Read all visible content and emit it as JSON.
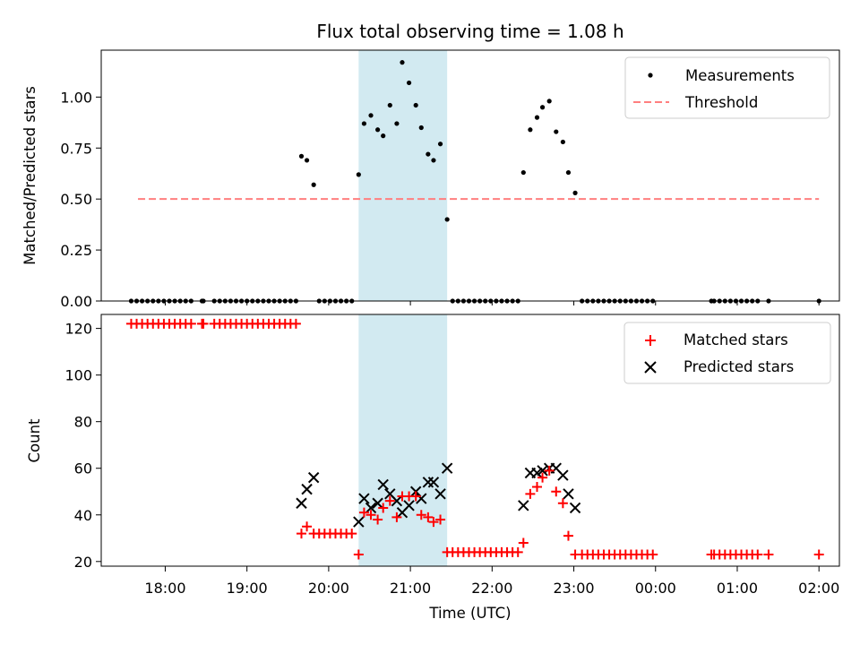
{
  "chart_data": [
    {
      "type": "scatter",
      "title": "Flux total observing time = 1.08 h",
      "xlabel": "",
      "ylabel": "Matched/Predicted stars",
      "ylim": [
        0,
        1.23
      ],
      "yticks": [
        0,
        0.25,
        0.5,
        0.75,
        1.0
      ],
      "ytick_labels": [
        "0.00",
        "0.25",
        "0.50",
        "0.75",
        "1.00"
      ],
      "grid": false,
      "legend_position": "top-right",
      "shaded_span": {
        "start": "20:22",
        "end": "21:27",
        "color": "#add8e6"
      },
      "threshold": {
        "value": 0.5,
        "start": "17:40",
        "end": "02:00"
      },
      "series": [
        {
          "name": "Measurements",
          "marker": "dot",
          "color": "#000000",
          "points": [
            [
              "17:35",
              0
            ],
            [
              "17:39",
              0
            ],
            [
              "17:43",
              0
            ],
            [
              "17:47",
              0
            ],
            [
              "17:51",
              0
            ],
            [
              "17:55",
              0
            ],
            [
              "17:59",
              0
            ],
            [
              "18:03",
              0
            ],
            [
              "18:07",
              0
            ],
            [
              "18:11",
              0
            ],
            [
              "18:15",
              0
            ],
            [
              "18:19",
              0
            ],
            [
              "18:27",
              0
            ],
            [
              "18:28",
              0
            ],
            [
              "18:36",
              0
            ],
            [
              "18:40",
              0
            ],
            [
              "18:44",
              0
            ],
            [
              "18:48",
              0
            ],
            [
              "18:52",
              0
            ],
            [
              "18:56",
              0
            ],
            [
              "19:00",
              0
            ],
            [
              "19:04",
              0
            ],
            [
              "19:08",
              0
            ],
            [
              "19:12",
              0
            ],
            [
              "19:16",
              0
            ],
            [
              "19:20",
              0
            ],
            [
              "19:24",
              0
            ],
            [
              "19:28",
              0
            ],
            [
              "19:32",
              0
            ],
            [
              "19:36",
              0
            ],
            [
              "19:40",
              0.71
            ],
            [
              "19:44",
              0.69
            ],
            [
              "19:49",
              0.57
            ],
            [
              "19:53",
              0
            ],
            [
              "19:57",
              0
            ],
            [
              "20:01",
              0
            ],
            [
              "20:05",
              0
            ],
            [
              "20:09",
              0
            ],
            [
              "20:13",
              0
            ],
            [
              "20:17",
              0
            ],
            [
              "20:22",
              0.62
            ],
            [
              "20:26",
              0.87
            ],
            [
              "20:31",
              0.91
            ],
            [
              "20:36",
              0.84
            ],
            [
              "20:40",
              0.81
            ],
            [
              "20:45",
              0.96
            ],
            [
              "20:50",
              0.87
            ],
            [
              "20:54",
              1.17
            ],
            [
              "20:59",
              1.07
            ],
            [
              "21:04",
              0.96
            ],
            [
              "21:08",
              0.85
            ],
            [
              "21:13",
              0.72
            ],
            [
              "21:17",
              0.69
            ],
            [
              "21:22",
              0.77
            ],
            [
              "21:27",
              0.4
            ],
            [
              "21:31",
              0
            ],
            [
              "21:35",
              0
            ],
            [
              "21:39",
              0
            ],
            [
              "21:43",
              0
            ],
            [
              "21:47",
              0
            ],
            [
              "21:51",
              0
            ],
            [
              "21:55",
              0
            ],
            [
              "21:59",
              0
            ],
            [
              "22:03",
              0
            ],
            [
              "22:07",
              0
            ],
            [
              "22:11",
              0
            ],
            [
              "22:15",
              0
            ],
            [
              "22:19",
              0
            ],
            [
              "22:23",
              0.63
            ],
            [
              "22:28",
              0.84
            ],
            [
              "22:33",
              0.9
            ],
            [
              "22:37",
              0.95
            ],
            [
              "22:42",
              0.98
            ],
            [
              "22:47",
              0.83
            ],
            [
              "22:52",
              0.78
            ],
            [
              "22:56",
              0.63
            ],
            [
              "23:01",
              0.53
            ],
            [
              "23:06",
              0
            ],
            [
              "23:10",
              0
            ],
            [
              "23:14",
              0
            ],
            [
              "23:18",
              0
            ],
            [
              "23:22",
              0
            ],
            [
              "23:26",
              0
            ],
            [
              "23:30",
              0
            ],
            [
              "23:34",
              0
            ],
            [
              "23:38",
              0
            ],
            [
              "23:42",
              0
            ],
            [
              "23:46",
              0
            ],
            [
              "23:50",
              0
            ],
            [
              "23:54",
              0
            ],
            [
              "23:58",
              0
            ],
            [
              "00:41",
              0
            ],
            [
              "00:43",
              0
            ],
            [
              "00:47",
              0
            ],
            [
              "00:51",
              0
            ],
            [
              "00:55",
              0
            ],
            [
              "00:59",
              0
            ],
            [
              "01:03",
              0
            ],
            [
              "01:07",
              0
            ],
            [
              "01:11",
              0
            ],
            [
              "01:15",
              0
            ],
            [
              "01:23",
              0
            ],
            [
              "02:00",
              0
            ]
          ]
        },
        {
          "name": "Threshold",
          "type": "line",
          "style": "dashed",
          "color": "#ff7f7f",
          "points": [
            [
              "17:40",
              0.5
            ],
            [
              "02:00",
              0.5
            ]
          ]
        }
      ]
    },
    {
      "type": "scatter",
      "title": "",
      "xlabel": "Time (UTC)",
      "ylabel": "Count",
      "ylim": [
        18,
        126
      ],
      "yticks": [
        20,
        40,
        60,
        80,
        100,
        120
      ],
      "ytick_labels": [
        "20",
        "40",
        "60",
        "80",
        "100",
        "120"
      ],
      "xticks": [
        "18:00",
        "19:00",
        "20:00",
        "21:00",
        "22:00",
        "23:00",
        "00:00",
        "01:00",
        "02:00"
      ],
      "grid": false,
      "legend_position": "top-right",
      "shaded_span": {
        "start": "20:22",
        "end": "21:27",
        "color": "#add8e6"
      },
      "series": [
        {
          "name": "Matched stars",
          "marker": "plus",
          "color": "#ff0000",
          "points": [
            [
              "17:35",
              122
            ],
            [
              "17:39",
              122
            ],
            [
              "17:43",
              122
            ],
            [
              "17:47",
              122
            ],
            [
              "17:51",
              122
            ],
            [
              "17:55",
              122
            ],
            [
              "17:59",
              122
            ],
            [
              "18:03",
              122
            ],
            [
              "18:07",
              122
            ],
            [
              "18:11",
              122
            ],
            [
              "18:15",
              122
            ],
            [
              "18:19",
              122
            ],
            [
              "18:27",
              122
            ],
            [
              "18:28",
              122
            ],
            [
              "18:36",
              122
            ],
            [
              "18:40",
              122
            ],
            [
              "18:44",
              122
            ],
            [
              "18:48",
              122
            ],
            [
              "18:52",
              122
            ],
            [
              "18:56",
              122
            ],
            [
              "19:00",
              122
            ],
            [
              "19:04",
              122
            ],
            [
              "19:08",
              122
            ],
            [
              "19:12",
              122
            ],
            [
              "19:16",
              122
            ],
            [
              "19:20",
              122
            ],
            [
              "19:24",
              122
            ],
            [
              "19:28",
              122
            ],
            [
              "19:32",
              122
            ],
            [
              "19:36",
              122
            ],
            [
              "19:40",
              32
            ],
            [
              "19:44",
              35
            ],
            [
              "19:49",
              32
            ],
            [
              "19:53",
              32
            ],
            [
              "19:57",
              32
            ],
            [
              "20:01",
              32
            ],
            [
              "20:05",
              32
            ],
            [
              "20:09",
              32
            ],
            [
              "20:13",
              32
            ],
            [
              "20:17",
              32
            ],
            [
              "20:22",
              23
            ],
            [
              "20:26",
              41
            ],
            [
              "20:31",
              40
            ],
            [
              "20:36",
              38
            ],
            [
              "20:40",
              43
            ],
            [
              "20:45",
              46
            ],
            [
              "20:50",
              39
            ],
            [
              "20:54",
              48
            ],
            [
              "20:59",
              48
            ],
            [
              "21:04",
              48
            ],
            [
              "21:08",
              40
            ],
            [
              "21:13",
              39
            ],
            [
              "21:17",
              37
            ],
            [
              "21:22",
              38
            ],
            [
              "21:27",
              24
            ],
            [
              "21:31",
              24
            ],
            [
              "21:35",
              24
            ],
            [
              "21:39",
              24
            ],
            [
              "21:43",
              24
            ],
            [
              "21:47",
              24
            ],
            [
              "21:51",
              24
            ],
            [
              "21:55",
              24
            ],
            [
              "21:59",
              24
            ],
            [
              "22:03",
              24
            ],
            [
              "22:07",
              24
            ],
            [
              "22:11",
              24
            ],
            [
              "22:15",
              24
            ],
            [
              "22:19",
              24
            ],
            [
              "22:23",
              28
            ],
            [
              "22:28",
              49
            ],
            [
              "22:33",
              52
            ],
            [
              "22:37",
              56
            ],
            [
              "22:42",
              59
            ],
            [
              "22:47",
              50
            ],
            [
              "22:52",
              45
            ],
            [
              "22:56",
              31
            ],
            [
              "23:01",
              23
            ],
            [
              "23:06",
              23
            ],
            [
              "23:10",
              23
            ],
            [
              "23:14",
              23
            ],
            [
              "23:18",
              23
            ],
            [
              "23:22",
              23
            ],
            [
              "23:26",
              23
            ],
            [
              "23:30",
              23
            ],
            [
              "23:34",
              23
            ],
            [
              "23:38",
              23
            ],
            [
              "23:42",
              23
            ],
            [
              "23:46",
              23
            ],
            [
              "23:50",
              23
            ],
            [
              "23:54",
              23
            ],
            [
              "23:58",
              23
            ],
            [
              "00:41",
              23
            ],
            [
              "00:43",
              23
            ],
            [
              "00:47",
              23
            ],
            [
              "00:51",
              23
            ],
            [
              "00:55",
              23
            ],
            [
              "00:59",
              23
            ],
            [
              "01:03",
              23
            ],
            [
              "01:07",
              23
            ],
            [
              "01:11",
              23
            ],
            [
              "01:15",
              23
            ],
            [
              "01:23",
              23
            ],
            [
              "02:00",
              23
            ]
          ]
        },
        {
          "name": "Predicted stars",
          "marker": "x",
          "color": "#000000",
          "points": [
            [
              "19:40",
              45
            ],
            [
              "19:44",
              51
            ],
            [
              "19:49",
              56
            ],
            [
              "20:22",
              37
            ],
            [
              "20:26",
              47
            ],
            [
              "20:31",
              43
            ],
            [
              "20:36",
              45
            ],
            [
              "20:40",
              53
            ],
            [
              "20:45",
              49
            ],
            [
              "20:50",
              46
            ],
            [
              "20:54",
              41
            ],
            [
              "20:59",
              44
            ],
            [
              "21:04",
              50
            ],
            [
              "21:08",
              47
            ],
            [
              "21:13",
              54
            ],
            [
              "21:17",
              54
            ],
            [
              "21:22",
              49
            ],
            [
              "21:27",
              60
            ],
            [
              "22:23",
              44
            ],
            [
              "22:28",
              58
            ],
            [
              "22:33",
              58
            ],
            [
              "22:37",
              59
            ],
            [
              "22:42",
              60
            ],
            [
              "22:47",
              60
            ],
            [
              "22:52",
              57
            ],
            [
              "22:56",
              49
            ],
            [
              "23:01",
              43
            ]
          ]
        }
      ]
    }
  ]
}
